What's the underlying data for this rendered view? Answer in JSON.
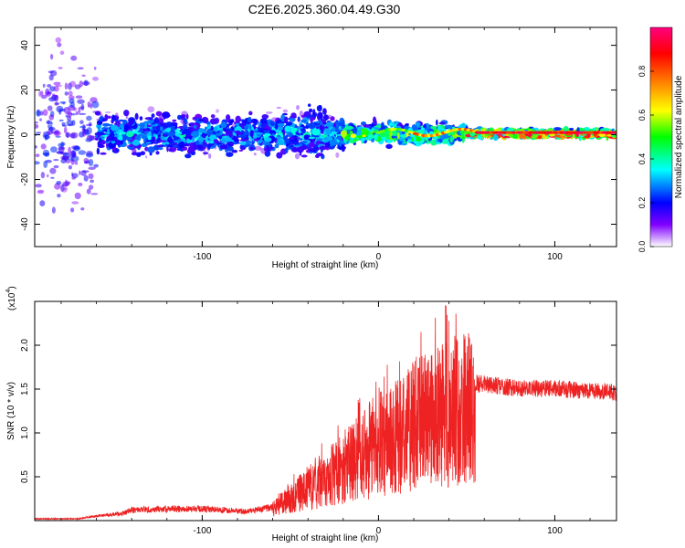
{
  "figure_title": "C2E6.2025.360.04.49.G30",
  "chart_data": [
    {
      "type": "heatmap",
      "panel": "spectrogram",
      "xlabel": "Height of straight line (km)",
      "ylabel": "Frequency (Hz)",
      "xlim": [
        -195,
        135
      ],
      "ylim": [
        -50,
        48
      ],
      "xticks": [
        -100,
        0,
        100
      ],
      "xtick_labels": [
        "-100",
        "0",
        "100"
      ],
      "yticks": [
        -40,
        -20,
        0,
        20,
        40
      ],
      "ytick_labels": [
        "-40",
        "-20",
        "0",
        "20",
        "40"
      ],
      "colorbar": {
        "label": "Normalized spectral amplitude",
        "range": [
          0,
          1
        ],
        "ticks": [
          0.0,
          0.2,
          0.4,
          0.6,
          0.8
        ],
        "tick_labels": [
          "0.0",
          "0.2",
          "0.4",
          "0.6",
          "0.8"
        ],
        "colors": [
          "#ffffff",
          "#8000ff",
          "#0000ff",
          "#00ffff",
          "#00ff00",
          "#ffff00",
          "#ff8000",
          "#ff0000",
          "#ff0080"
        ]
      },
      "description_segments": [
        {
          "x_range": [
            -195,
            -160
          ],
          "freq_spread": 45,
          "mean_amplitude": 0.15
        },
        {
          "x_range": [
            -160,
            -20
          ],
          "freq_spread": 10,
          "mean_amplitude": 0.3
        },
        {
          "x_range": [
            -20,
            50
          ],
          "freq_spread": 5,
          "mean_amplitude": 0.5
        },
        {
          "x_range": [
            50,
            135
          ],
          "freq_spread": 2,
          "mean_amplitude": 0.8
        }
      ],
      "tone_frequency_hz": 1
    },
    {
      "type": "line",
      "panel": "snr",
      "xlabel": "Height of straight line (km)",
      "ylabel": "SNR (10 * v/v)",
      "yscale_label": "(x10",
      "yscale_exponent": "4",
      "xlim": [
        -195,
        135
      ],
      "ylim": [
        0,
        2.5
      ],
      "xticks": [
        -100,
        0,
        100
      ],
      "xtick_labels": [
        "-100",
        "0",
        "100"
      ],
      "yticks": [
        0.5,
        1.0,
        1.5,
        2.0
      ],
      "ytick_labels": [
        "0.5",
        "1.0",
        "1.5",
        "2.0"
      ],
      "series": [
        {
          "name": "SNR",
          "color": "#ee2222",
          "envelope": {
            "x": [
              -195,
              -170,
              -160,
              -145,
              -140,
              -120,
              -100,
              -90,
              -75,
              -60,
              -50,
              -40,
              -30,
              -20,
              -10,
              0,
              10,
              20,
              30,
              40,
              50,
              60,
              70,
              80,
              90,
              100,
              110,
              120,
              135
            ],
            "y": [
              0.02,
              0.02,
              0.05,
              0.08,
              0.12,
              0.13,
              0.13,
              0.12,
              0.1,
              0.15,
              0.3,
              0.45,
              0.55,
              0.75,
              0.9,
              1.05,
              1.15,
              1.3,
              1.4,
              1.5,
              1.55,
              1.55,
              1.52,
              1.5,
              1.5,
              1.5,
              1.48,
              1.48,
              1.45
            ]
          },
          "peak": {
            "x": 38,
            "y": 2.45
          }
        }
      ]
    }
  ]
}
